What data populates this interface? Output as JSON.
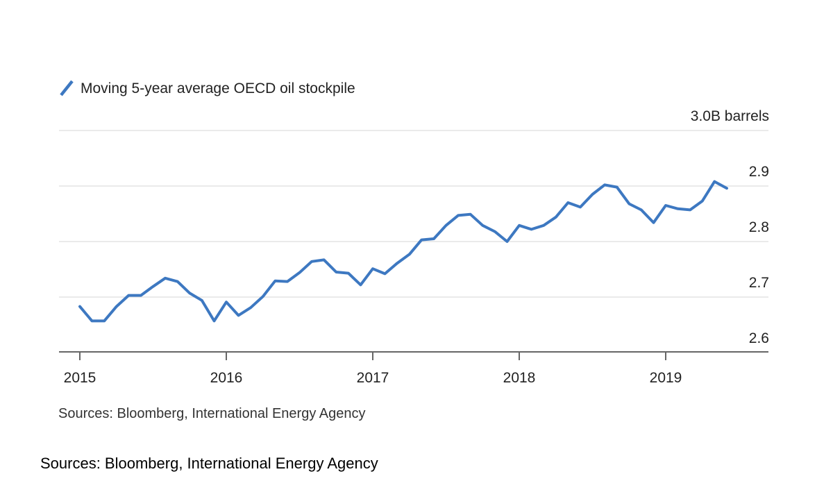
{
  "chart_data": {
    "type": "line",
    "title": "",
    "legend": {
      "position": "top-left",
      "entries": [
        {
          "label": "Moving 5-year average OECD oil stockpile",
          "color": "#3d78c1"
        }
      ]
    },
    "x_axis": {
      "range": [
        2015,
        2019.5
      ],
      "ticks": [
        2015,
        2016,
        2017,
        2018,
        2019
      ],
      "tick_labels": [
        "2015",
        "2016",
        "2017",
        "2018",
        "2019"
      ]
    },
    "y_axis": {
      "range": [
        2.6,
        3.0
      ],
      "unit": "B barrels",
      "side": "right",
      "ticks": [
        2.6,
        2.7,
        2.8,
        2.9,
        3.0
      ],
      "tick_labels": [
        "2.6",
        "2.7",
        "2.8",
        "2.9",
        "3.0B barrels"
      ],
      "grid": true
    },
    "series": [
      {
        "name": "Moving 5-year average OECD oil stockpile",
        "color": "#3d78c1",
        "x": [
          2015.0,
          2015.083,
          2015.167,
          2015.25,
          2015.333,
          2015.417,
          2015.5,
          2015.583,
          2015.667,
          2015.75,
          2015.833,
          2015.917,
          2016.0,
          2016.083,
          2016.167,
          2016.25,
          2016.333,
          2016.417,
          2016.5,
          2016.583,
          2016.667,
          2016.75,
          2016.833,
          2016.917,
          2017.0,
          2017.083,
          2017.167,
          2017.25,
          2017.333,
          2017.417,
          2017.5,
          2017.583,
          2017.667,
          2017.75,
          2017.833,
          2017.917,
          2018.0,
          2018.083,
          2018.167,
          2018.25,
          2018.333,
          2018.417,
          2018.5,
          2018.583,
          2018.667,
          2018.75,
          2018.833,
          2018.917,
          2019.0,
          2019.083,
          2019.167,
          2019.25,
          2019.333,
          2019.417
        ],
        "values": [
          2.683,
          2.657,
          2.657,
          2.683,
          2.703,
          2.703,
          2.719,
          2.734,
          2.728,
          2.707,
          2.694,
          2.657,
          2.691,
          2.667,
          2.681,
          2.701,
          2.729,
          2.728,
          2.744,
          2.764,
          2.767,
          2.745,
          2.743,
          2.722,
          2.751,
          2.742,
          2.761,
          2.777,
          2.803,
          2.805,
          2.829,
          2.847,
          2.849,
          2.829,
          2.818,
          2.8,
          2.829,
          2.822,
          2.829,
          2.844,
          2.87,
          2.862,
          2.885,
          2.902,
          2.898,
          2.868,
          2.857,
          2.834,
          2.865,
          2.859,
          2.857,
          2.873,
          2.908,
          2.896
        ]
      }
    ],
    "source_note": "Sources: Bloomberg, International Energy Agency"
  },
  "caption": "Sources: Bloomberg, International Energy Agency"
}
